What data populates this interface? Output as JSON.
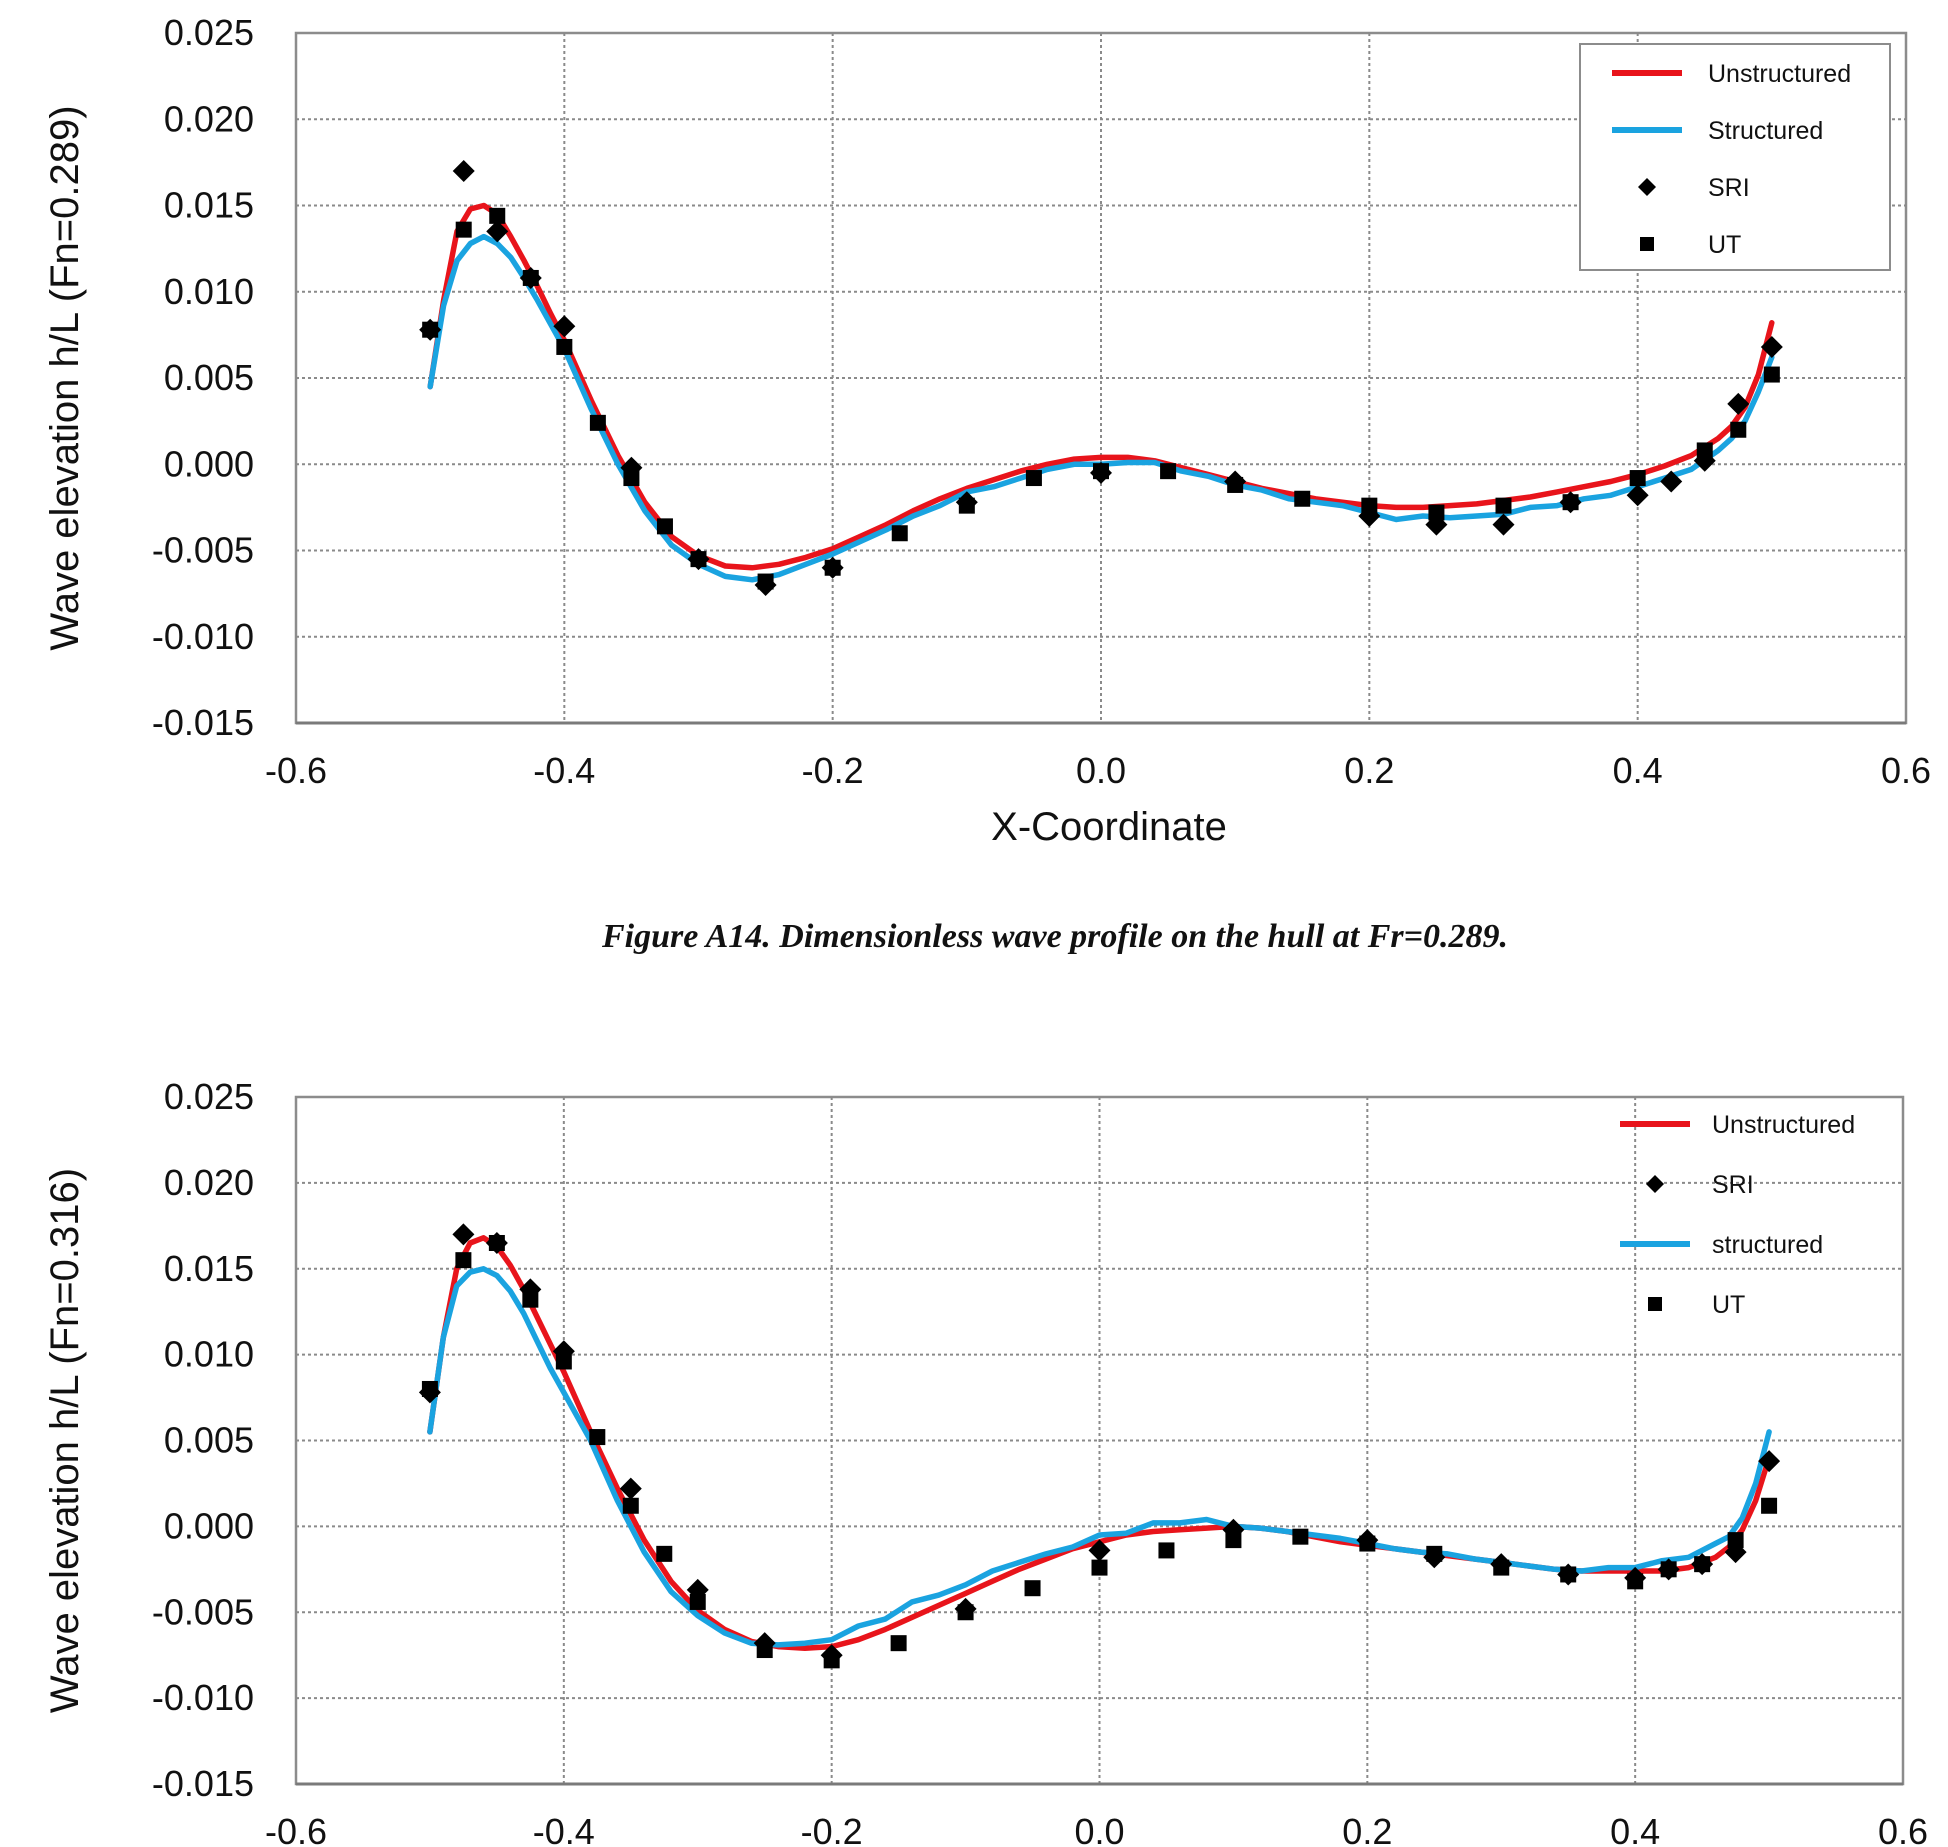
{
  "caption": "Figure  A14. Dimensionless wave profile on the hull at Fr=0.289.",
  "chart_data": [
    {
      "type": "line",
      "ylabel": "Wave elevation h/L  (Fn=0.289)",
      "xlabel": "X-Coordinate",
      "xlim": [
        -0.6,
        0.6
      ],
      "ylim": [
        -0.015,
        0.025
      ],
      "x_ticks": [
        "-0.6",
        "-0.4",
        "-0.2",
        "0.0",
        "0.2",
        "0.4",
        "0.6"
      ],
      "y_ticks": [
        "0.025",
        "0.020",
        "0.015",
        "0.010",
        "0.005",
        "0.000",
        "-0.005",
        "-0.010",
        "-0.015"
      ],
      "grid": true,
      "legend_position": "top-right",
      "legend": [
        "Unstructured",
        "Structured",
        "SRI",
        "UT"
      ],
      "series": [
        {
          "name": "Unstructured",
          "style": "line",
          "color": "#e8141b",
          "x": [
            -0.5,
            -0.49,
            -0.48,
            -0.47,
            -0.46,
            -0.45,
            -0.44,
            -0.43,
            -0.42,
            -0.41,
            -0.4,
            -0.38,
            -0.36,
            -0.34,
            -0.32,
            -0.3,
            -0.28,
            -0.26,
            -0.24,
            -0.22,
            -0.2,
            -0.18,
            -0.16,
            -0.14,
            -0.12,
            -0.1,
            -0.08,
            -0.06,
            -0.04,
            -0.02,
            0.0,
            0.02,
            0.04,
            0.06,
            0.08,
            0.1,
            0.12,
            0.14,
            0.16,
            0.18,
            0.2,
            0.22,
            0.24,
            0.26,
            0.28,
            0.3,
            0.32,
            0.34,
            0.36,
            0.38,
            0.4,
            0.42,
            0.44,
            0.46,
            0.47,
            0.48,
            0.49,
            0.5
          ],
          "y": [
            0.0045,
            0.0095,
            0.0135,
            0.0148,
            0.015,
            0.0145,
            0.0132,
            0.0118,
            0.0103,
            0.0087,
            0.0072,
            0.0037,
            0.0005,
            -0.0022,
            -0.0042,
            -0.0053,
            -0.0059,
            -0.006,
            -0.0058,
            -0.0054,
            -0.0049,
            -0.0042,
            -0.0035,
            -0.0027,
            -0.002,
            -0.0014,
            -0.0009,
            -0.0004,
            0.0,
            0.0003,
            0.0004,
            0.0004,
            0.0002,
            -0.0002,
            -0.0006,
            -0.001,
            -0.0014,
            -0.0017,
            -0.002,
            -0.0022,
            -0.0024,
            -0.0025,
            -0.0025,
            -0.0024,
            -0.0023,
            -0.0021,
            -0.0019,
            -0.0016,
            -0.0013,
            -0.001,
            -0.0006,
            -0.0001,
            0.0005,
            0.0015,
            0.0022,
            0.0033,
            0.0052,
            0.0082
          ]
        },
        {
          "name": "Structured",
          "style": "line",
          "color": "#1aa3e0",
          "x": [
            -0.5,
            -0.49,
            -0.48,
            -0.47,
            -0.46,
            -0.45,
            -0.44,
            -0.43,
            -0.42,
            -0.41,
            -0.4,
            -0.38,
            -0.36,
            -0.34,
            -0.32,
            -0.3,
            -0.28,
            -0.26,
            -0.24,
            -0.22,
            -0.2,
            -0.18,
            -0.16,
            -0.14,
            -0.12,
            -0.1,
            -0.08,
            -0.06,
            -0.04,
            -0.02,
            0.0,
            0.02,
            0.04,
            0.06,
            0.08,
            0.1,
            0.12,
            0.14,
            0.16,
            0.18,
            0.2,
            0.22,
            0.24,
            0.26,
            0.28,
            0.3,
            0.32,
            0.34,
            0.36,
            0.38,
            0.4,
            0.42,
            0.44,
            0.46,
            0.47,
            0.48,
            0.49,
            0.5
          ],
          "y": [
            0.0045,
            0.0092,
            0.0118,
            0.0128,
            0.0132,
            0.0128,
            0.012,
            0.0108,
            0.0095,
            0.0081,
            0.0067,
            0.0032,
            0.0,
            -0.0027,
            -0.0047,
            -0.0058,
            -0.0065,
            -0.0067,
            -0.0064,
            -0.0058,
            -0.0052,
            -0.0045,
            -0.0038,
            -0.003,
            -0.0024,
            -0.0016,
            -0.0013,
            -0.0008,
            -0.0003,
            0.0,
            0.0,
            0.0001,
            0.0001,
            -0.0004,
            -0.0007,
            -0.0012,
            -0.0015,
            -0.002,
            -0.0022,
            -0.0024,
            -0.0028,
            -0.0032,
            -0.003,
            -0.0031,
            -0.003,
            -0.0029,
            -0.0025,
            -0.0024,
            -0.002,
            -0.0018,
            -0.0013,
            -0.0008,
            -0.0003,
            0.0008,
            0.0015,
            0.0025,
            0.0042,
            0.0062
          ]
        },
        {
          "name": "SRI",
          "style": "marker",
          "marker": "diamond",
          "color": "#000000",
          "x": [
            -0.5,
            -0.475,
            -0.45,
            -0.425,
            -0.4,
            -0.35,
            -0.3,
            -0.25,
            -0.2,
            -0.1,
            0.0,
            0.1,
            0.2,
            0.25,
            0.3,
            0.35,
            0.4,
            0.425,
            0.45,
            0.475,
            0.5
          ],
          "y": [
            0.0078,
            0.017,
            0.0135,
            0.0108,
            0.008,
            -0.0002,
            -0.0055,
            -0.007,
            -0.006,
            -0.0022,
            -0.0005,
            -0.001,
            -0.003,
            -0.0035,
            -0.0035,
            -0.0022,
            -0.0018,
            -0.001,
            0.0002,
            0.0035,
            0.0068
          ]
        },
        {
          "name": "UT",
          "style": "marker",
          "marker": "square",
          "color": "#000000",
          "x": [
            -0.5,
            -0.475,
            -0.45,
            -0.425,
            -0.4,
            -0.375,
            -0.35,
            -0.325,
            -0.3,
            -0.25,
            -0.2,
            -0.15,
            -0.1,
            -0.05,
            0.0,
            0.05,
            0.1,
            0.15,
            0.2,
            0.25,
            0.3,
            0.35,
            0.4,
            0.45,
            0.475,
            0.5
          ],
          "y": [
            0.0078,
            0.0136,
            0.0144,
            0.0108,
            0.0068,
            0.0024,
            -0.0008,
            -0.0036,
            -0.0055,
            -0.0068,
            -0.006,
            -0.004,
            -0.0024,
            -0.0008,
            -0.0004,
            -0.0004,
            -0.0012,
            -0.002,
            -0.0024,
            -0.0028,
            -0.0024,
            -0.0022,
            -0.0008,
            0.0008,
            0.002,
            0.0052
          ]
        }
      ]
    },
    {
      "type": "line",
      "ylabel": "Wave elevation h/L  (Fn=0.316)",
      "xlabel": "",
      "xlim": [
        -0.6,
        0.6
      ],
      "ylim": [
        -0.015,
        0.025
      ],
      "x_ticks": [
        "-0.6",
        "-0.4",
        "-0.2",
        "0.0",
        "0.2",
        "0.4",
        "0.6"
      ],
      "y_ticks": [
        "0.025",
        "0.020",
        "0.015",
        "0.010",
        "0.005",
        "0.000",
        "-0.005",
        "-0.010",
        "-0.015"
      ],
      "grid": true,
      "legend_position": "top-right",
      "legend": [
        "Unstructured",
        "SRI",
        "structured",
        "UT"
      ],
      "series": [
        {
          "name": "Unstructured",
          "style": "line",
          "color": "#e8141b",
          "x": [
            -0.5,
            -0.49,
            -0.48,
            -0.47,
            -0.46,
            -0.45,
            -0.44,
            -0.43,
            -0.42,
            -0.41,
            -0.4,
            -0.38,
            -0.36,
            -0.34,
            -0.32,
            -0.3,
            -0.28,
            -0.26,
            -0.24,
            -0.22,
            -0.2,
            -0.18,
            -0.16,
            -0.14,
            -0.12,
            -0.1,
            -0.08,
            -0.06,
            -0.04,
            -0.02,
            0.0,
            0.02,
            0.04,
            0.06,
            0.08,
            0.1,
            0.12,
            0.14,
            0.16,
            0.18,
            0.2,
            0.22,
            0.24,
            0.26,
            0.28,
            0.3,
            0.32,
            0.34,
            0.36,
            0.38,
            0.4,
            0.42,
            0.44,
            0.46,
            0.47,
            0.48,
            0.49,
            0.5
          ],
          "y": [
            0.0055,
            0.011,
            0.015,
            0.0165,
            0.0168,
            0.0163,
            0.0152,
            0.0138,
            0.0122,
            0.0106,
            0.009,
            0.0055,
            0.0022,
            -0.0008,
            -0.0032,
            -0.0049,
            -0.006,
            -0.0067,
            -0.007,
            -0.0071,
            -0.007,
            -0.0066,
            -0.006,
            -0.0053,
            -0.0046,
            -0.0039,
            -0.0032,
            -0.0025,
            -0.0019,
            -0.0013,
            -0.0009,
            -0.0005,
            -0.0003,
            -0.0002,
            -0.0001,
            0.0,
            -0.0001,
            -0.0003,
            -0.0006,
            -0.0009,
            -0.0011,
            -0.0013,
            -0.0015,
            -0.0017,
            -0.0019,
            -0.0021,
            -0.0023,
            -0.0025,
            -0.0026,
            -0.0026,
            -0.0026,
            -0.0026,
            -0.0024,
            -0.0018,
            -0.0012,
            -0.0002,
            0.0015,
            0.004
          ]
        },
        {
          "name": "structured",
          "style": "line",
          "color": "#1aa3e0",
          "x": [
            -0.5,
            -0.49,
            -0.48,
            -0.47,
            -0.46,
            -0.45,
            -0.44,
            -0.43,
            -0.42,
            -0.41,
            -0.4,
            -0.38,
            -0.36,
            -0.34,
            -0.32,
            -0.3,
            -0.28,
            -0.26,
            -0.24,
            -0.22,
            -0.2,
            -0.18,
            -0.16,
            -0.14,
            -0.12,
            -0.1,
            -0.08,
            -0.06,
            -0.04,
            -0.02,
            0.0,
            0.02,
            0.04,
            0.06,
            0.08,
            0.1,
            0.12,
            0.14,
            0.16,
            0.18,
            0.2,
            0.22,
            0.24,
            0.26,
            0.28,
            0.3,
            0.32,
            0.34,
            0.36,
            0.38,
            0.4,
            0.42,
            0.44,
            0.46,
            0.47,
            0.48,
            0.49,
            0.5
          ],
          "y": [
            0.0055,
            0.011,
            0.014,
            0.0148,
            0.015,
            0.0146,
            0.0137,
            0.0124,
            0.0108,
            0.0092,
            0.0078,
            0.005,
            0.0015,
            -0.0015,
            -0.0038,
            -0.0052,
            -0.0062,
            -0.0068,
            -0.0069,
            -0.0068,
            -0.0066,
            -0.0058,
            -0.0054,
            -0.0044,
            -0.004,
            -0.0034,
            -0.0026,
            -0.0021,
            -0.0016,
            -0.0012,
            -0.0005,
            -0.0004,
            0.0002,
            0.0002,
            0.0004,
            0.0,
            -0.0001,
            -0.0003,
            -0.0005,
            -0.0007,
            -0.001,
            -0.0013,
            -0.0015,
            -0.0016,
            -0.0019,
            -0.0021,
            -0.0023,
            -0.0025,
            -0.0026,
            -0.0024,
            -0.0024,
            -0.002,
            -0.0018,
            -0.001,
            -0.0006,
            0.0005,
            0.0025,
            0.0055
          ]
        },
        {
          "name": "SRI",
          "style": "marker",
          "marker": "diamond",
          "color": "#000000",
          "x": [
            -0.5,
            -0.475,
            -0.45,
            -0.425,
            -0.4,
            -0.35,
            -0.3,
            -0.25,
            -0.2,
            -0.1,
            0.0,
            0.1,
            0.2,
            0.25,
            0.3,
            0.35,
            0.4,
            0.425,
            0.45,
            0.475,
            0.5
          ],
          "y": [
            0.0078,
            0.017,
            0.0165,
            0.0138,
            0.0102,
            0.0022,
            -0.0037,
            -0.0068,
            -0.0075,
            -0.0048,
            -0.0014,
            -0.0002,
            -0.0008,
            -0.0018,
            -0.0022,
            -0.0028,
            -0.003,
            -0.0025,
            -0.0022,
            -0.0015,
            0.0038
          ]
        },
        {
          "name": "UT",
          "style": "marker",
          "marker": "square",
          "color": "#000000",
          "x": [
            -0.5,
            -0.475,
            -0.45,
            -0.425,
            -0.4,
            -0.375,
            -0.35,
            -0.325,
            -0.3,
            -0.25,
            -0.2,
            -0.15,
            -0.1,
            -0.05,
            0.0,
            0.05,
            0.1,
            0.15,
            0.2,
            0.25,
            0.3,
            0.35,
            0.4,
            0.425,
            0.45,
            0.475,
            0.5
          ],
          "y": [
            0.008,
            0.0155,
            0.0165,
            0.0132,
            0.0096,
            0.0052,
            0.0012,
            -0.0016,
            -0.0044,
            -0.0072,
            -0.0078,
            -0.0068,
            -0.005,
            -0.0036,
            -0.0024,
            -0.0014,
            -0.0008,
            -0.0006,
            -0.001,
            -0.0016,
            -0.0024,
            -0.0028,
            -0.0032,
            -0.0025,
            -0.0022,
            -0.0008,
            0.0012
          ]
        }
      ]
    }
  ]
}
